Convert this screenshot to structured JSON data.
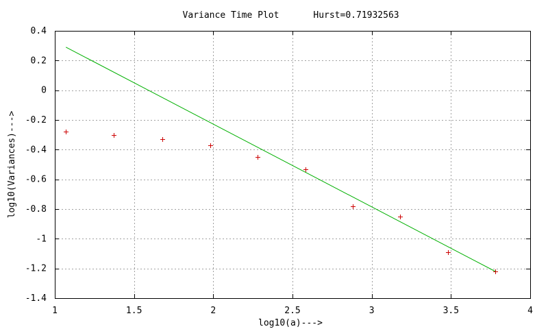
{
  "chart_data": {
    "type": "scatter",
    "title": "Variance Time Plot",
    "hurst_label": "Hurst=0.71932563",
    "xlabel": "log10(a)--->",
    "ylabel": "log10(Variances)--->",
    "xlim": [
      1,
      4
    ],
    "ylim": [
      -1.4,
      0.4
    ],
    "x_ticks": [
      {
        "value": 1,
        "label": "1"
      },
      {
        "value": 1.5,
        "label": "1.5"
      },
      {
        "value": 2,
        "label": "2"
      },
      {
        "value": 2.5,
        "label": "2.5"
      },
      {
        "value": 3,
        "label": "3"
      },
      {
        "value": 3.5,
        "label": "3.5"
      },
      {
        "value": 4,
        "label": "4"
      }
    ],
    "y_ticks": [
      {
        "value": 0.4,
        "label": "0.4"
      },
      {
        "value": 0.2,
        "label": "0.2"
      },
      {
        "value": 0,
        "label": "0"
      },
      {
        "value": -0.2,
        "label": "-0.2"
      },
      {
        "value": -0.4,
        "label": "-0.4"
      },
      {
        "value": -0.6,
        "label": "-0.6"
      },
      {
        "value": -0.8,
        "label": "-0.8"
      },
      {
        "value": -1,
        "label": "-1"
      },
      {
        "value": -1.2,
        "label": "-1.2"
      },
      {
        "value": -1.4,
        "label": "-1.4"
      }
    ],
    "grid": true,
    "series": [
      {
        "type": "scatter",
        "marker": "+",
        "color": "#cc0000",
        "x": [
          1.07,
          1.37,
          1.68,
          1.98,
          2.28,
          2.58,
          2.88,
          3.18,
          3.48,
          3.78
        ],
        "y": [
          -0.28,
          -0.3,
          -0.33,
          -0.37,
          -0.45,
          -0.53,
          -0.78,
          -0.85,
          -1.09,
          -1.22
        ]
      },
      {
        "type": "line",
        "color": "#00b000",
        "x": [
          1.07,
          3.78
        ],
        "y": [
          0.29,
          -1.22
        ]
      }
    ]
  }
}
